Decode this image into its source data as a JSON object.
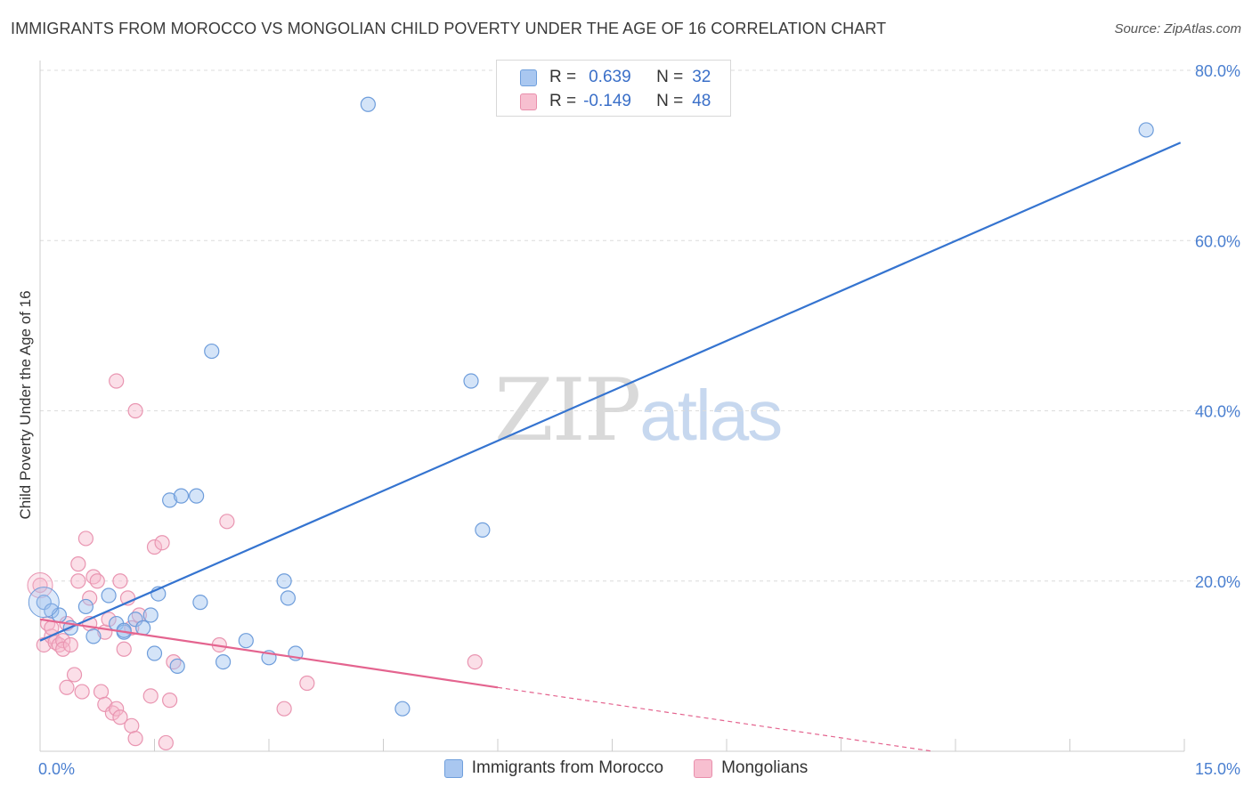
{
  "title": "IMMIGRANTS FROM MOROCCO VS MONGOLIAN CHILD POVERTY UNDER THE AGE OF 16 CORRELATION CHART",
  "source": "Source: ZipAtlas.com",
  "watermark": {
    "zip": "ZIP",
    "atlas": "atlas"
  },
  "legend_top": {
    "rows": [
      {
        "r_label": "R =",
        "r_value": "0.639",
        "n_label": "N =",
        "n_value": "32",
        "color": "#a9c7f0",
        "border": "#6f9fdc"
      },
      {
        "r_label": "R =",
        "r_value": "-0.149",
        "n_label": "N =",
        "n_value": "48",
        "color": "#f7bfd0",
        "border": "#e98fac"
      }
    ]
  },
  "legend_bottom": [
    {
      "label": "Immigrants from Morocco",
      "color": "#a9c7f0",
      "border": "#6f9fdc"
    },
    {
      "label": "Mongolians",
      "color": "#f7bfd0",
      "border": "#e98fac"
    }
  ],
  "colors": {
    "blue": "#3574d0",
    "pink": "#e4648f",
    "blue_fill": "rgba(160,195,240,0.45)",
    "blue_stroke": "#6e9ddb",
    "pink_fill": "rgba(247,185,205,0.45)",
    "pink_stroke": "#e995b1",
    "grid": "#dcdcdc"
  },
  "chart_data": {
    "type": "scatter",
    "title": "IMMIGRANTS FROM MOROCCO VS MONGOLIAN CHILD POVERTY UNDER THE AGE OF 16 CORRELATION CHART",
    "xlabel": "",
    "ylabel": "Child Poverty Under the Age of 16",
    "xlim": [
      0,
      15
    ],
    "ylim": [
      0,
      80
    ],
    "x_tick_labels": [
      "0.0%",
      "15.0%"
    ],
    "y_ticks": [
      20,
      40,
      60,
      80
    ],
    "y_tick_labels": [
      "20.0%",
      "40.0%",
      "60.0%",
      "80.0%"
    ],
    "grid": true,
    "series": [
      {
        "name": "Immigrants from Morocco",
        "r": 0.639,
        "n": 32,
        "points": [
          [
            0.05,
            17.5
          ],
          [
            0.15,
            16.5
          ],
          [
            0.25,
            16.0
          ],
          [
            0.4,
            14.5
          ],
          [
            0.6,
            17.0
          ],
          [
            0.7,
            13.5
          ],
          [
            0.9,
            18.3
          ],
          [
            1.0,
            15.0
          ],
          [
            1.1,
            14.0
          ],
          [
            1.25,
            15.5
          ],
          [
            1.35,
            14.5
          ],
          [
            1.45,
            16.0
          ],
          [
            1.55,
            18.5
          ],
          [
            1.5,
            11.5
          ],
          [
            1.7,
            29.5
          ],
          [
            1.8,
            10.0
          ],
          [
            1.85,
            30.0
          ],
          [
            2.05,
            30.0
          ],
          [
            2.1,
            17.5
          ],
          [
            2.25,
            47.0
          ],
          [
            2.4,
            10.5
          ],
          [
            2.7,
            13.0
          ],
          [
            3.0,
            11.0
          ],
          [
            3.2,
            20.0
          ],
          [
            3.25,
            18.0
          ],
          [
            3.35,
            11.5
          ],
          [
            4.3,
            76.0
          ],
          [
            4.75,
            5.0
          ],
          [
            5.65,
            43.5
          ],
          [
            5.8,
            26.0
          ],
          [
            14.5,
            73.0
          ],
          [
            1.1,
            14.2
          ]
        ],
        "trend": {
          "x": [
            0.0,
            14.95
          ],
          "y": [
            13.0,
            71.5
          ]
        }
      },
      {
        "name": "Mongolians",
        "r": -0.149,
        "n": 48,
        "points": [
          [
            0.0,
            19.5
          ],
          [
            0.05,
            12.5
          ],
          [
            0.1,
            15.0
          ],
          [
            0.15,
            13.5
          ],
          [
            0.2,
            12.8
          ],
          [
            0.25,
            12.5
          ],
          [
            0.3,
            13.0
          ],
          [
            0.35,
            15.0
          ],
          [
            0.35,
            7.5
          ],
          [
            0.45,
            9.0
          ],
          [
            0.5,
            22.0
          ],
          [
            0.5,
            20.0
          ],
          [
            0.55,
            7.0
          ],
          [
            0.6,
            25.0
          ],
          [
            0.65,
            18.0
          ],
          [
            0.7,
            20.5
          ],
          [
            0.75,
            20.0
          ],
          [
            0.8,
            7.0
          ],
          [
            0.85,
            14.0
          ],
          [
            0.85,
            5.5
          ],
          [
            0.9,
            15.5
          ],
          [
            0.95,
            4.5
          ],
          [
            1.0,
            5.0
          ],
          [
            1.05,
            4.0
          ],
          [
            1.1,
            12.0
          ],
          [
            1.15,
            18.0
          ],
          [
            1.2,
            3.0
          ],
          [
            1.25,
            1.5
          ],
          [
            1.2,
            14.5
          ],
          [
            1.25,
            40.0
          ],
          [
            1.45,
            6.5
          ],
          [
            1.5,
            24.0
          ],
          [
            1.6,
            24.5
          ],
          [
            1.65,
            1.0
          ],
          [
            1.7,
            6.0
          ],
          [
            1.75,
            10.5
          ],
          [
            2.35,
            12.5
          ],
          [
            2.45,
            27.0
          ],
          [
            1.3,
            16.0
          ],
          [
            3.2,
            5.0
          ],
          [
            3.5,
            8.0
          ],
          [
            5.7,
            10.5
          ],
          [
            1.0,
            43.5
          ],
          [
            0.3,
            12.0
          ],
          [
            0.15,
            14.5
          ],
          [
            0.65,
            15.0
          ],
          [
            1.05,
            20.0
          ],
          [
            0.4,
            12.5
          ]
        ],
        "trend": {
          "x": [
            0.0,
            6.0
          ],
          "y": [
            15.5,
            7.5
          ]
        },
        "trend_dashed": {
          "x": [
            6.0,
            11.7
          ],
          "y": [
            7.5,
            0.0
          ]
        }
      }
    ]
  }
}
